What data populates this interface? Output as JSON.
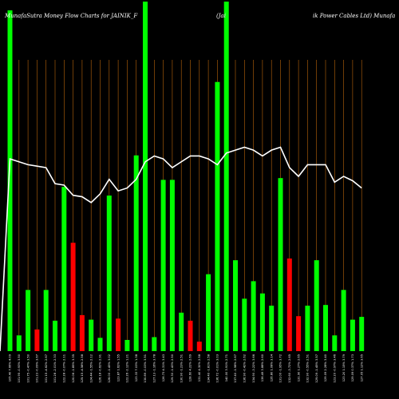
{
  "chart_data": {
    "type": "bar",
    "title_left": "MunafaSutra  Money Flow  Charts for JAINIK_F",
    "title_mid": "(Jai",
    "title_right": "ik Power Cables Ltd) Munafa",
    "ylim": [
      0,
      100
    ],
    "price_range": [
      0,
      100
    ],
    "colors": {
      "up": "#00ff00",
      "down": "#ff0000",
      "price_line": "#ffffff",
      "grid": "#b8650b",
      "background": "#000000"
    },
    "bars": [
      {
        "value": 97.5,
        "direction": "up",
        "label": "105.40 7.66% 4.09"
      },
      {
        "value": 4.5,
        "direction": "up",
        "label": "101.95 -0.93% 3.50"
      },
      {
        "value": 17.5,
        "direction": "up",
        "label": "101.75 -0.47% 3.50"
      },
      {
        "value": 6.2,
        "direction": "down",
        "label": "101.23 -0.09% 3.67"
      },
      {
        "value": 17.5,
        "direction": "up",
        "label": "101.15 -4.62% 2.67"
      },
      {
        "value": 8.7,
        "direction": "up",
        "label": "101.28 -2.01% 2.33"
      },
      {
        "value": 47.0,
        "direction": "up",
        "label": "122.28 -0.07% 2.11"
      },
      {
        "value": 31.0,
        "direction": "down",
        "label": "120.06 -1.85% 3.35"
      },
      {
        "value": 10.3,
        "direction": "down",
        "label": "125.15 -4.58% 2.58"
      },
      {
        "value": 9.0,
        "direction": "up",
        "label": "124.44 -1.55% 2.12"
      },
      {
        "value": 3.8,
        "direction": "up",
        "label": "126.18 -0.62% 2.91"
      },
      {
        "value": 44.5,
        "direction": "up",
        "label": "126.00 -1.45% 3.02"
      },
      {
        "value": 9.3,
        "direction": "down",
        "label": "123.87 1.62% 1.55"
      },
      {
        "value": 3.2,
        "direction": "up",
        "label": "122.26 -2.12% 1.21"
      },
      {
        "value": 56.0,
        "direction": "up",
        "label": "123.33 7.03% 1.38"
      },
      {
        "value": 100,
        "direction": "up",
        "label": "130.89 -0.03% 3.51"
      },
      {
        "value": 4.0,
        "direction": "up",
        "label": "127.13 -1.16% 3.78"
      },
      {
        "value": 49.0,
        "direction": "up",
        "label": "126.73 4.31% 3.43"
      },
      {
        "value": 49.0,
        "direction": "up",
        "label": "129.30 -1.43% 2.50"
      },
      {
        "value": 11.0,
        "direction": "up",
        "label": "130.90 -1.23% 2.51"
      },
      {
        "value": 8.7,
        "direction": "down",
        "label": "128.60 4.22% 2.69"
      },
      {
        "value": 2.7,
        "direction": "down",
        "label": "131.40 4.30% 2.58"
      },
      {
        "value": 22.0,
        "direction": "up",
        "label": "134.40 -1.81% 2.58"
      },
      {
        "value": 77.0,
        "direction": "up",
        "label": "136.72 -0.01% 3.03"
      },
      {
        "value": 100,
        "direction": "up",
        "label": "140.00 3.91% 2.71"
      },
      {
        "value": 26.0,
        "direction": "up",
        "label": "137.40 -1.98% 2.67"
      },
      {
        "value": 15.0,
        "direction": "up",
        "label": "136.90 -0.42% 2.62"
      },
      {
        "value": 20.0,
        "direction": "up",
        "label": "134.90 -3.22% 3.66"
      },
      {
        "value": 16.5,
        "direction": "up",
        "label": "136.49 3.88% 2.60"
      },
      {
        "value": 13.0,
        "direction": "up",
        "label": "126.80 1.08% 3.14"
      },
      {
        "value": 49.5,
        "direction": "up",
        "label": "131.00 -1.95% 3.72"
      },
      {
        "value": 26.5,
        "direction": "down",
        "label": "132.60 -3.72% 2.65"
      },
      {
        "value": 10.0,
        "direction": "down",
        "label": "131.90 1.27% 2.65"
      },
      {
        "value": 13.0,
        "direction": "up",
        "label": "132.90 -0.55% 2.51"
      },
      {
        "value": 26.0,
        "direction": "up",
        "label": "129.09 -1.45% 3.57"
      },
      {
        "value": 13.2,
        "direction": "up",
        "label": "129.09 2.28% 3.40"
      },
      {
        "value": 4.5,
        "direction": "up",
        "label": "123.20 -0.97% 3.46"
      },
      {
        "value": 17.5,
        "direction": "up",
        "label": "123.20 1.15% 3.79"
      },
      {
        "value": 9.0,
        "direction": "up",
        "label": "129.09 0.37% 1.73"
      },
      {
        "value": 9.8,
        "direction": "up",
        "label": "127.05 1.12% 3.65"
      }
    ],
    "price_line": [
      66,
      65,
      64,
      63.5,
      63,
      57.5,
      57,
      53.5,
      53,
      51,
      54,
      59,
      55,
      56,
      59,
      65,
      67,
      66,
      63,
      65,
      67,
      67,
      66,
      64,
      68,
      69,
      70,
      69,
      67,
      69,
      70,
      63,
      60,
      64,
      64,
      64,
      58,
      60,
      58.5,
      56
    ]
  }
}
